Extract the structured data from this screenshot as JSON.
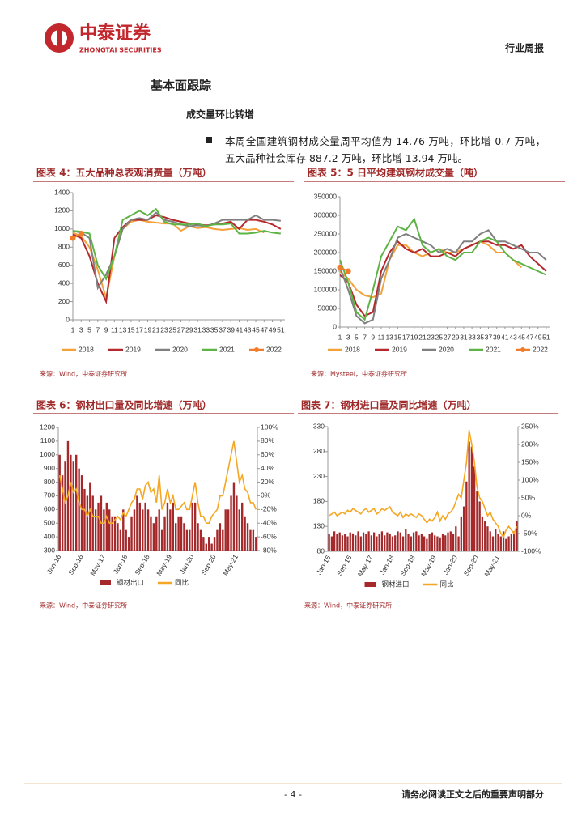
{
  "header": {
    "logo_cn": "中泰证券",
    "logo_en": "ZHONGTAI SECURITIES",
    "report_type": "行业周报"
  },
  "section": {
    "title": "基本面跟踪",
    "subtitle": "成交量环比转增",
    "bullet": "本周全国建筑钢材成交量周平均值为 14.76 万吨，环比增 0.7 万吨，五大品种社会库存 887.2 万吨，环比增 13.94 万吨。"
  },
  "footer": {
    "page": "- 4 -",
    "disclaimer": "请务必阅读正文之后的重要声明部分"
  },
  "chart_data": [
    {
      "type": "line",
      "title": "图表 4：五大品种总表观消费量（万吨）",
      "source": "来源：Wind，中泰证券研究所",
      "x": [
        1,
        3,
        5,
        7,
        9,
        11,
        13,
        15,
        17,
        19,
        21,
        23,
        25,
        27,
        29,
        31,
        33,
        35,
        37,
        39,
        41,
        43,
        45,
        47,
        49,
        51
      ],
      "xlim": [
        1,
        52
      ],
      "xticks": [
        1,
        3,
        5,
        7,
        9,
        11,
        13,
        15,
        17,
        19,
        21,
        23,
        25,
        27,
        29,
        31,
        33,
        35,
        37,
        39,
        41,
        43,
        45,
        47,
        49,
        51
      ],
      "ylim": [
        0,
        1400
      ],
      "yticks": [
        0,
        200,
        400,
        600,
        800,
        1000,
        1200,
        1400
      ],
      "series": [
        {
          "name": "2018",
          "color": "#f4a13a",
          "values": [
            960,
            920,
            800,
            550,
            240,
            700,
            1000,
            1080,
            1100,
            1080,
            1070,
            1060,
            1060,
            980,
            1030,
            1010,
            1020,
            1000,
            990,
            1000,
            1010,
            990,
            1000,
            960,
            null,
            null
          ]
        },
        {
          "name": "2019",
          "color": "#b5292c",
          "values": [
            940,
            900,
            700,
            400,
            200,
            900,
            1020,
            1100,
            1100,
            1100,
            1150,
            1130,
            1100,
            1080,
            1060,
            1050,
            1040,
            1050,
            1060,
            1080,
            1000,
            1100,
            1100,
            1080,
            1050,
            1000
          ]
        },
        {
          "name": "2020",
          "color": "#808080",
          "values": [
            980,
            960,
            900,
            350,
            500,
            700,
            1000,
            1100,
            1120,
            1100,
            1180,
            1100,
            1080,
            1050,
            1030,
            1040,
            1030,
            1060,
            1100,
            1100,
            1100,
            1100,
            1150,
            1100,
            1100,
            1090
          ]
        },
        {
          "name": "2021",
          "color": "#5eb346",
          "values": [
            980,
            970,
            950,
            600,
            450,
            700,
            1100,
            1150,
            1200,
            1150,
            1220,
            1080,
            1050,
            1050,
            1050,
            1060,
            1030,
            1050,
            1050,
            1060,
            950,
            950,
            960,
            980,
            960,
            950
          ]
        },
        {
          "name": "2022",
          "color": "#f07d2b",
          "marker": true,
          "values": [
            900,
            950,
            null,
            null,
            null,
            null,
            null,
            null,
            null,
            null,
            null,
            null,
            null,
            null,
            null,
            null,
            null,
            null,
            null,
            null,
            null,
            null,
            null,
            null,
            null,
            null
          ]
        }
      ]
    },
    {
      "type": "line",
      "title": "图表 5：5 日平均建筑钢材成交量（吨）",
      "source": "来源：Mysteel，中泰证券研究所",
      "x": [
        1,
        3,
        5,
        7,
        9,
        11,
        13,
        15,
        17,
        19,
        21,
        23,
        25,
        27,
        29,
        31,
        33,
        35,
        37,
        39,
        41,
        43,
        45,
        47,
        49,
        51
      ],
      "xlim": [
        1,
        52
      ],
      "xticks": [
        1,
        3,
        5,
        7,
        9,
        11,
        13,
        15,
        17,
        19,
        21,
        23,
        25,
        27,
        29,
        31,
        33,
        35,
        37,
        39,
        41,
        43,
        45,
        47,
        49,
        51
      ],
      "ylim": [
        0,
        350000
      ],
      "yticks": [
        0,
        50000,
        100000,
        150000,
        200000,
        250000,
        300000,
        350000
      ],
      "series": [
        {
          "name": "2018",
          "color": "#f4a13a",
          "values": [
            150000,
            130000,
            100000,
            85000,
            80000,
            90000,
            180000,
            220000,
            220000,
            200000,
            190000,
            200000,
            210000,
            200000,
            200000,
            210000,
            220000,
            230000,
            220000,
            200000,
            200000,
            180000,
            160000,
            null,
            null,
            null
          ]
        },
        {
          "name": "2019",
          "color": "#b5292c",
          "values": [
            140000,
            120000,
            60000,
            30000,
            40000,
            150000,
            200000,
            230000,
            210000,
            200000,
            210000,
            190000,
            190000,
            200000,
            190000,
            210000,
            220000,
            230000,
            230000,
            220000,
            220000,
            210000,
            220000,
            190000,
            170000,
            150000
          ]
        },
        {
          "name": "2020",
          "color": "#808080",
          "values": [
            160000,
            100000,
            30000,
            10000,
            20000,
            130000,
            180000,
            240000,
            250000,
            240000,
            230000,
            220000,
            200000,
            210000,
            200000,
            230000,
            230000,
            250000,
            260000,
            230000,
            230000,
            220000,
            210000,
            200000,
            200000,
            180000
          ]
        },
        {
          "name": "2021",
          "color": "#5eb346",
          "values": [
            180000,
            120000,
            40000,
            20000,
            100000,
            190000,
            230000,
            270000,
            260000,
            290000,
            220000,
            200000,
            210000,
            190000,
            180000,
            200000,
            200000,
            230000,
            240000,
            230000,
            200000,
            180000,
            170000,
            160000,
            150000,
            140000
          ]
        },
        {
          "name": "2022",
          "color": "#f07d2b",
          "marker": true,
          "values": [
            160000,
            150000,
            null,
            null,
            null,
            null,
            null,
            null,
            null,
            null,
            null,
            null,
            null,
            null,
            null,
            null,
            null,
            null,
            null,
            null,
            null,
            null,
            null,
            null,
            null,
            null
          ]
        }
      ]
    },
    {
      "type": "bar",
      "title": "图表 6：钢材出口量及同比增速（万吨）",
      "source": "来源：Wind，中泰证券研究所",
      "categories": [
        "Jan-16",
        null,
        null,
        null,
        null,
        null,
        null,
        null,
        "Sep-16",
        null,
        null,
        null,
        null,
        null,
        null,
        null,
        "May-17",
        null,
        null,
        null,
        null,
        null,
        null,
        null,
        "Jan-18",
        null,
        null,
        null,
        null,
        null,
        null,
        null,
        "Sep-18",
        null,
        null,
        null,
        null,
        null,
        null,
        null,
        "May-19",
        null,
        null,
        null,
        null,
        null,
        null,
        null,
        "Jan-20",
        null,
        null,
        null,
        null,
        null,
        null,
        null,
        "Sep-20",
        null,
        null,
        null,
        null,
        null,
        null,
        null,
        "May-21",
        null,
        null,
        null,
        null,
        null,
        null,
        null
      ],
      "ylim": [
        300,
        1200
      ],
      "yticks": [
        300,
        400,
        500,
        600,
        700,
        800,
        900,
        1000,
        1100,
        1200
      ],
      "y2lim": [
        -80,
        100
      ],
      "y2ticks": [
        {
          "value": -80,
          "label": "-80%"
        },
        {
          "value": -60,
          "label": "-60%"
        },
        {
          "value": -40,
          "label": "-40%"
        },
        {
          "value": -20,
          "label": "-20%"
        },
        {
          "value": 0,
          "label": "0%"
        },
        {
          "value": 20,
          "label": "20%"
        },
        {
          "value": 40,
          "label": "40%"
        },
        {
          "value": 60,
          "label": "60%"
        },
        {
          "value": 80,
          "label": "80%"
        },
        {
          "value": 100,
          "label": "100%"
        }
      ],
      "series": [
        {
          "name": "钢材出口",
          "color": "#a5282a",
          "values": [
            1000,
            850,
            950,
            1100,
            1000,
            950,
            1000,
            900,
            850,
            750,
            700,
            800,
            700,
            600,
            650,
            700,
            600,
            650,
            600,
            550,
            550,
            500,
            450,
            600,
            450,
            400,
            550,
            600,
            700,
            650,
            600,
            650,
            600,
            550,
            500,
            550,
            600,
            450,
            550,
            650,
            600,
            650,
            500,
            550,
            550,
            500,
            450,
            450,
            650,
            650,
            500,
            450,
            400,
            350,
            400,
            350,
            400,
            450,
            500,
            450,
            600,
            600,
            700,
            800,
            700,
            600,
            650,
            550,
            500,
            450,
            450,
            400
          ]
        },
        {
          "name": "同比",
          "type": "line",
          "axis": "y2",
          "color": "#f5a623",
          "values": [
            30,
            10,
            -10,
            0,
            20,
            5,
            10,
            -10,
            -20,
            -20,
            -30,
            -20,
            -30,
            -30,
            -30,
            -40,
            -40,
            -30,
            -40,
            -40,
            -35,
            -30,
            -35,
            -25,
            -30,
            -20,
            -10,
            -5,
            10,
            10,
            -5,
            15,
            20,
            5,
            10,
            -10,
            30,
            -20,
            -10,
            10,
            -10,
            0,
            -20,
            -20,
            -15,
            -10,
            -20,
            -20,
            0,
            20,
            -10,
            -30,
            -30,
            -40,
            -40,
            -30,
            -25,
            -20,
            0,
            0,
            20,
            40,
            60,
            80,
            50,
            20,
            30,
            10,
            5,
            -10,
            -10,
            -20
          ]
        }
      ]
    },
    {
      "type": "bar",
      "title": "图表 7：钢材进口量及同比增速（万吨）",
      "source": "来源：Wind，中泰证券研究所",
      "categories": [
        "Jan-16",
        null,
        null,
        null,
        null,
        null,
        null,
        null,
        "Sep-16",
        null,
        null,
        null,
        null,
        null,
        null,
        null,
        "May-17",
        null,
        null,
        null,
        null,
        null,
        null,
        null,
        "Jan-18",
        null,
        null,
        null,
        null,
        null,
        null,
        null,
        "Sep-18",
        null,
        null,
        null,
        null,
        null,
        null,
        null,
        "May-19",
        null,
        null,
        null,
        null,
        null,
        null,
        null,
        "Jan-20",
        null,
        null,
        null,
        null,
        null,
        null,
        null,
        "Sep-20",
        null,
        null,
        null,
        null,
        null,
        null,
        null,
        "May-21",
        null,
        null,
        null,
        null,
        null,
        null,
        null
      ],
      "ylim": [
        80,
        330
      ],
      "yticks": [
        80,
        130,
        180,
        230,
        280,
        330
      ],
      "y2lim": [
        -100,
        250
      ],
      "y2ticks": [
        {
          "value": -100,
          "label": "-100%"
        },
        {
          "value": -50,
          "label": "-50%"
        },
        {
          "value": 0,
          "label": "0%"
        },
        {
          "value": 50,
          "label": "50%"
        },
        {
          "value": 100,
          "label": "100%"
        },
        {
          "value": 150,
          "label": "150%"
        },
        {
          "value": 200,
          "label": "200%"
        },
        {
          "value": 250,
          "label": "250%"
        }
      ],
      "series": [
        {
          "name": "钢材进口",
          "color": "#a5282a",
          "values": [
            115,
            110,
            120,
            115,
            118,
            112,
            115,
            110,
            118,
            116,
            112,
            120,
            110,
            118,
            115,
            120,
            112,
            118,
            110,
            115,
            120,
            112,
            118,
            115,
            110,
            112,
            120,
            118,
            110,
            125,
            115,
            110,
            118,
            120,
            112,
            115,
            110,
            105,
            115,
            118,
            112,
            110,
            108,
            115,
            112,
            118,
            120,
            115,
            130,
            110,
            150,
            170,
            220,
            300,
            290,
            250,
            200,
            180,
            150,
            140,
            130,
            120,
            110,
            125,
            115,
            110,
            120,
            105,
            110,
            115,
            120,
            140
          ]
        },
        {
          "name": "同比",
          "type": "line",
          "axis": "y2",
          "color": "#f5a623",
          "values": [
            0,
            5,
            10,
            0,
            5,
            10,
            5,
            15,
            10,
            20,
            15,
            10,
            5,
            15,
            20,
            10,
            15,
            20,
            5,
            10,
            20,
            15,
            20,
            25,
            10,
            5,
            0,
            10,
            -5,
            5,
            0,
            5,
            0,
            -5,
            5,
            0,
            -10,
            -20,
            -10,
            -15,
            -5,
            10,
            -15,
            0,
            -10,
            5,
            10,
            20,
            40,
            60,
            50,
            100,
            150,
            240,
            200,
            150,
            80,
            50,
            40,
            20,
            0,
            10,
            -10,
            -20,
            -30,
            -50,
            -60,
            -40,
            -30,
            -40,
            -50,
            -30
          ]
        }
      ]
    }
  ]
}
